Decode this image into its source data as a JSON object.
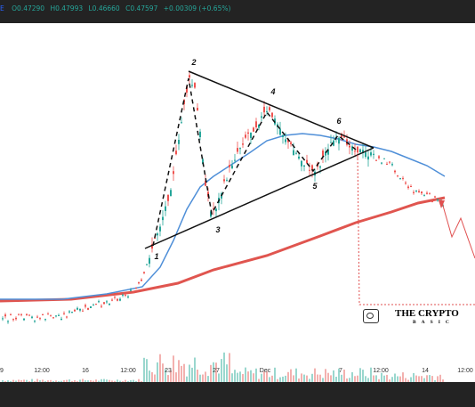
{
  "header": {
    "symbol_fragment": "E",
    "open": "O0.47290",
    "high": "H0.47993",
    "low": "L0.46660",
    "close": "C0.47597",
    "change": "+0.00309 (+0.65%)"
  },
  "watermark": {
    "title": "THE CRYPTO",
    "subtitle": "BASIC"
  },
  "colors": {
    "up": "#26a69a",
    "down": "#ef5350",
    "ma_fast": "#4f8fd8",
    "ma_slow": "#e0554f",
    "pattern_lines": "#111111",
    "projection": "#e05050"
  },
  "chart_data": {
    "type": "candlestick",
    "x_axis_labels": [
      "9",
      "12:00",
      "16",
      "12:00",
      "23",
      "27",
      "Dec",
      "7",
      "12:00",
      "14",
      "12:00"
    ],
    "wave_labels": [
      "1",
      "2",
      "3",
      "4",
      "5",
      "6"
    ],
    "annotations": [
      "symmetrical triangle",
      "dashed wave path 1-2-3-4-5-6",
      "breakdown projection"
    ],
    "grid": false
  }
}
